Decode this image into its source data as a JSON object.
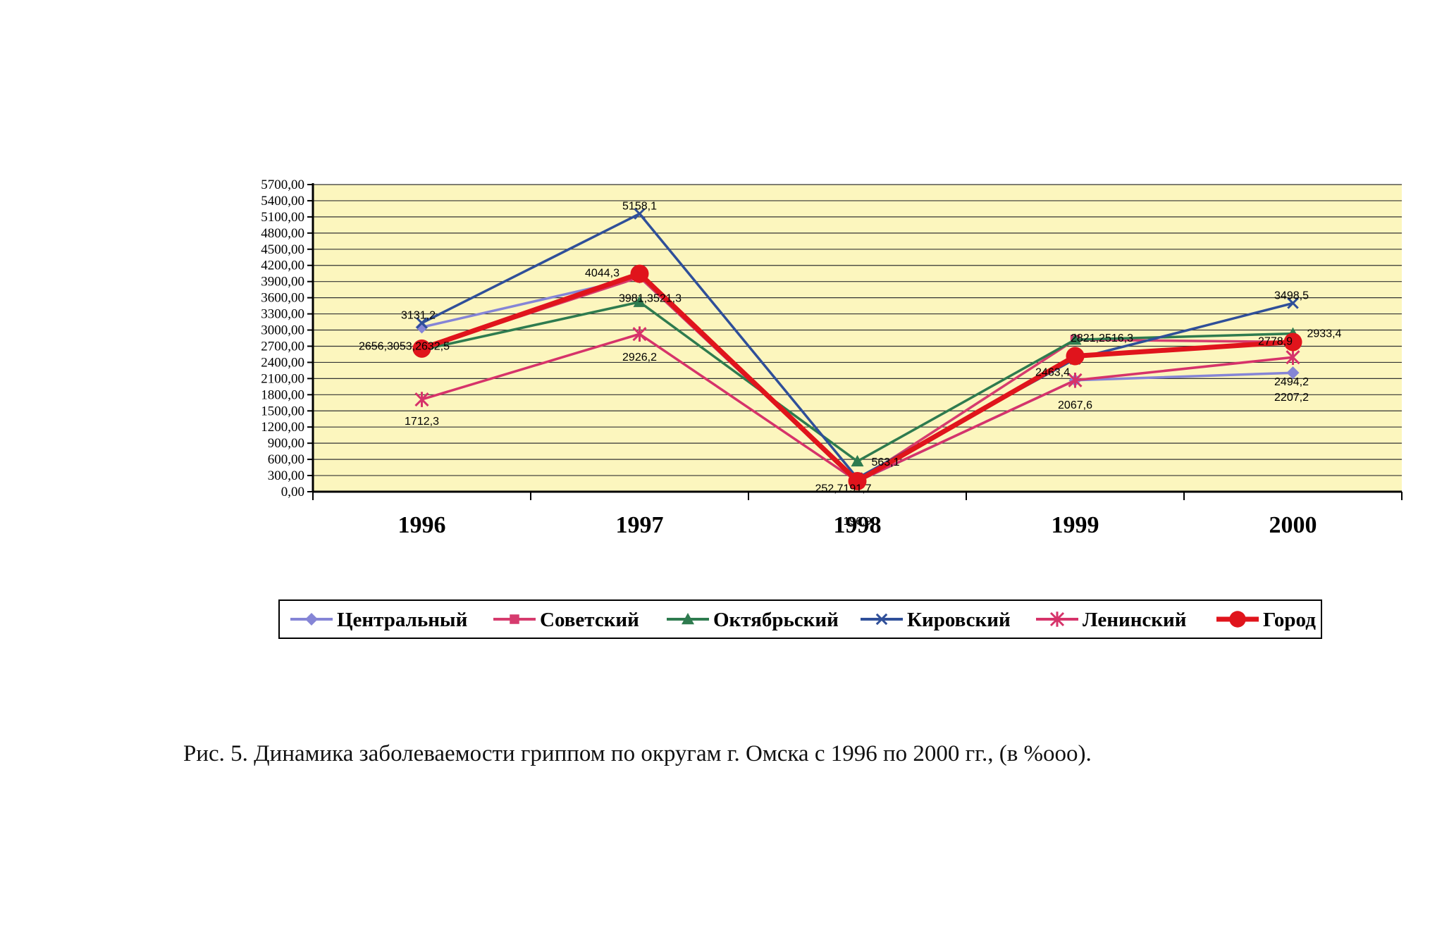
{
  "caption": "Рис. 5. Динамика заболеваемости гриппом по округам г. Омска с 1996 по 2000 гг., (в %ooo).",
  "chart_data": {
    "type": "line",
    "title": "",
    "xlabel": "",
    "ylabel": "",
    "categories": [
      "1996",
      "1997",
      "1998",
      "1999",
      "2000"
    ],
    "ylim": [
      0,
      5700
    ],
    "yticks": [
      "0,00",
      "300,00",
      "600,00",
      "900,00",
      "1200,00",
      "1500,00",
      "1800,00",
      "2100,00",
      "2400,00",
      "2700,00",
      "3000,00",
      "3300,00",
      "3600,00",
      "3900,00",
      "4200,00",
      "4500,00",
      "4800,00",
      "5100,00",
      "5400,00",
      "5700,00"
    ],
    "grid": true,
    "legend_position": "bottom",
    "plot_background": "#fcf6be",
    "series": [
      {
        "name": "Центральный",
        "color": "#8585d6",
        "marker": "diamond",
        "values": [
          3053,
          3981,
          190,
          2067.6,
          2207.2
        ]
      },
      {
        "name": "Советский",
        "color": "#d63b6e",
        "marker": "square",
        "values": [
          2656,
          3981,
          196.9,
          2821,
          2778.9
        ]
      },
      {
        "name": "Октябрьский",
        "color": "#2e7b4f",
        "marker": "triangle",
        "values": [
          2632.5,
          3521.3,
          563.1,
          2821,
          2933.4
        ]
      },
      {
        "name": "Кировский",
        "color": "#2f4f99",
        "marker": "x",
        "values": [
          3131.2,
          5158.1,
          252.7,
          2463.4,
          3498.5
        ]
      },
      {
        "name": "Ленинский",
        "color": "#d6336a",
        "marker": "star",
        "values": [
          1712.3,
          2926.2,
          191.7,
          2067.6,
          2494.2
        ]
      },
      {
        "name": "Город",
        "color": "#e0141c",
        "marker": "circle",
        "values": [
          2656,
          4044.3,
          196.9,
          2516.3,
          2778.9
        ]
      }
    ],
    "data_labels": [
      {
        "cat": 0,
        "value": 3131.2,
        "text": "3131,2",
        "dx": -5,
        "dy": -6,
        "anchor": "middle"
      },
      {
        "cat": 0,
        "value": 2632.5,
        "text": "2656,3053,2632,5",
        "dx": -25,
        "dy": 0,
        "anchor": "middle"
      },
      {
        "cat": 0,
        "value": 1712.3,
        "text": "1712,3",
        "dx": 0,
        "dy": 36,
        "anchor": "middle"
      },
      {
        "cat": 1,
        "value": 5158.1,
        "text": "5158,1",
        "dx": 0,
        "dy": -6,
        "anchor": "middle"
      },
      {
        "cat": 1,
        "value": 4044.3,
        "text": "4044,3",
        "dx": -53,
        "dy": 4,
        "anchor": "middle"
      },
      {
        "cat": 1,
        "value": 3521.3,
        "text": "3981,3521,3",
        "dx": 15,
        "dy": 0,
        "anchor": "middle"
      },
      {
        "cat": 1,
        "value": 2926.2,
        "text": "2926,2",
        "dx": 0,
        "dy": 38,
        "anchor": "middle"
      },
      {
        "cat": 2,
        "value": 563.1,
        "text": "563,1",
        "dx": 40,
        "dy": 6,
        "anchor": "middle"
      },
      {
        "cat": 2,
        "value": 252.7,
        "text": "252,7191,7",
        "dx": -20,
        "dy": 20,
        "anchor": "middle"
      },
      {
        "cat": 2,
        "value": 196.9,
        "text": "196,9",
        "dx": 0,
        "dy": 62,
        "anchor": "middle"
      },
      {
        "cat": 3,
        "value": 2463.4,
        "text": "2463,4",
        "dx": -32,
        "dy": 24,
        "anchor": "middle"
      },
      {
        "cat": 3,
        "value": 2821,
        "text": "2821,2516,3",
        "dx": 38,
        "dy": 3,
        "anchor": "middle"
      },
      {
        "cat": 3,
        "value": 2067.6,
        "text": "2067,6",
        "dx": 0,
        "dy": 40,
        "anchor": "middle"
      },
      {
        "cat": 4,
        "value": 3498.5,
        "text": "3498,5",
        "dx": -2,
        "dy": -6,
        "anchor": "middle"
      },
      {
        "cat": 4,
        "value": 2933.4,
        "text": "2933,4",
        "dx": 20,
        "dy": 5,
        "anchor": "start"
      },
      {
        "cat": 4,
        "value": 2778.9,
        "text": "2778,9",
        "dx": -25,
        "dy": 4,
        "anchor": "middle"
      },
      {
        "cat": 4,
        "value": 2494.2,
        "text": "2494,2",
        "dx": -2,
        "dy": 40,
        "anchor": "middle"
      },
      {
        "cat": 4,
        "value": 2207.2,
        "text": "2207,2",
        "dx": -2,
        "dy": 40,
        "anchor": "middle"
      }
    ]
  }
}
